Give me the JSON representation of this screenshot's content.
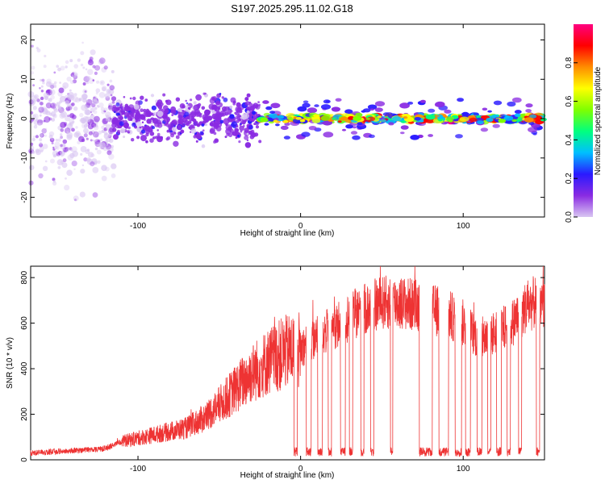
{
  "title": "S197.2025.295.11.02.G18",
  "chart_data": [
    {
      "type": "heatmap",
      "xlabel": "Height of straight line (km)",
      "ylabel": "Frequency (Hz)",
      "xlim": [
        -166,
        150
      ],
      "ylim": [
        -25,
        24
      ],
      "xticks": [
        -100,
        0,
        100
      ],
      "yticks": [
        -20,
        -10,
        0,
        10,
        20
      ],
      "colorbar": {
        "label": "Normalized spectral amplitude",
        "range": [
          0,
          1
        ],
        "ticks": [
          "0.0",
          "0.2",
          "0.4",
          "0.6",
          "0.8"
        ],
        "tick_values": [
          0.0,
          0.2,
          0.4,
          0.6,
          0.8
        ],
        "colors": [
          "#d9c6f2",
          "#8a2be2",
          "#2a1aff",
          "#00bfff",
          "#00ff7f",
          "#7fff00",
          "#ffff00",
          "#ff8c00",
          "#ff0000",
          "#ff0080"
        ]
      },
      "regions": [
        {
          "x_range": [
            -166,
            -115
          ],
          "freq_spread": 24,
          "amplitude": "low",
          "note": "scattered faint speckle"
        },
        {
          "x_range": [
            -115,
            -25
          ],
          "freq_spread": 8,
          "amplitude": "medium"
        },
        {
          "x_range": [
            -25,
            150
          ],
          "freq_spread": 1.5,
          "amplitude": "high",
          "center_freq": 0
        }
      ]
    },
    {
      "type": "line",
      "xlabel": "Height of straight line (km)",
      "ylabel": "SNR (10 * v/v)",
      "xlim": [
        -166,
        150
      ],
      "ylim": [
        0,
        850
      ],
      "xticks": [
        -100,
        0,
        100
      ],
      "yticks": [
        0,
        200,
        400,
        600,
        800
      ],
      "color": "#ee3333",
      "envelope": [
        {
          "x": -166,
          "y": 30
        },
        {
          "x": -140,
          "y": 40
        },
        {
          "x": -120,
          "y": 50
        },
        {
          "x": -110,
          "y": 80
        },
        {
          "x": -90,
          "y": 110
        },
        {
          "x": -70,
          "y": 140
        },
        {
          "x": -60,
          "y": 180
        },
        {
          "x": -50,
          "y": 240
        },
        {
          "x": -40,
          "y": 310
        },
        {
          "x": -30,
          "y": 380
        },
        {
          "x": -20,
          "y": 430
        },
        {
          "x": -10,
          "y": 470
        },
        {
          "x": 0,
          "y": 490
        },
        {
          "x": 10,
          "y": 540
        },
        {
          "x": 20,
          "y": 580
        },
        {
          "x": 30,
          "y": 630
        },
        {
          "x": 40,
          "y": 660
        },
        {
          "x": 50,
          "y": 690
        },
        {
          "x": 60,
          "y": 690
        },
        {
          "x": 70,
          "y": 680
        },
        {
          "x": 80,
          "y": 660
        },
        {
          "x": 90,
          "y": 640
        },
        {
          "x": 100,
          "y": 600
        },
        {
          "x": 110,
          "y": 530
        },
        {
          "x": 120,
          "y": 560
        },
        {
          "x": 130,
          "y": 600
        },
        {
          "x": 140,
          "y": 680
        },
        {
          "x": 150,
          "y": 700
        }
      ],
      "dropouts": [
        {
          "x": -3,
          "w": 2
        },
        {
          "x": 5,
          "w": 3
        },
        {
          "x": 12,
          "w": 3
        },
        {
          "x": 18,
          "w": 2
        },
        {
          "x": 26,
          "w": 3
        },
        {
          "x": 31,
          "w": 2
        },
        {
          "x": 38,
          "w": 2
        },
        {
          "x": 44,
          "w": 2
        },
        {
          "x": 56,
          "w": 1.5
        },
        {
          "x": 77,
          "w": 8
        },
        {
          "x": 88,
          "w": 6
        },
        {
          "x": 97,
          "w": 4
        },
        {
          "x": 103,
          "w": 3
        },
        {
          "x": 110,
          "w": 3
        },
        {
          "x": 116,
          "w": 2
        },
        {
          "x": 122,
          "w": 3
        },
        {
          "x": 128,
          "w": 2
        },
        {
          "x": 135,
          "w": 2
        },
        {
          "x": 146,
          "w": 2
        }
      ]
    }
  ]
}
